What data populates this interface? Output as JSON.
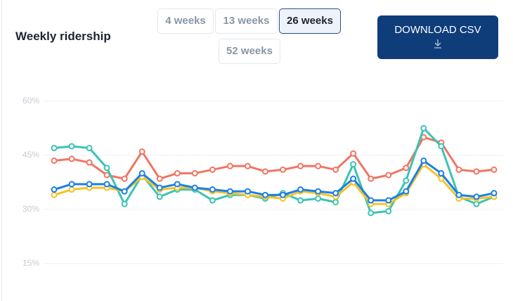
{
  "title": "Weekly ridership",
  "buttons": [
    "4 weeks",
    "13 weeks",
    "26 weeks",
    "52 weeks"
  ],
  "selected": 2,
  "download": "DOWNLOAD CSV",
  "chart_data": {
    "type": "line",
    "categories": [
      null,
      null,
      null,
      null,
      null,
      null,
      null,
      null,
      null,
      null,
      null,
      null,
      null,
      null,
      null,
      null,
      null,
      null,
      null,
      null,
      null,
      null,
      null,
      null,
      null,
      null
    ],
    "ylim": [
      5,
      62.5
    ],
    "yticks": [
      {
        "value": 15,
        "label": "15%"
      },
      {
        "value": 30,
        "label": "30%"
      },
      {
        "value": 45,
        "label": "45%"
      },
      {
        "value": 60,
        "label": "60%"
      }
    ],
    "grid": true,
    "series": [
      {
        "color": "#f07563",
        "values": [
          43.5,
          44,
          43,
          39.5,
          38.5,
          46,
          38.5,
          40,
          40,
          41,
          42,
          42,
          40.5,
          41,
          42,
          42,
          41,
          45.5,
          38.5,
          39.5,
          41.5,
          50,
          48.5,
          41,
          40.5,
          41
        ]
      },
      {
        "color": "#3cc3b5",
        "values": [
          47,
          47.5,
          47,
          41.5,
          31.5,
          39.5,
          33.5,
          35.5,
          35.5,
          32.5,
          34,
          34,
          33,
          34.5,
          32.5,
          33,
          32,
          42.5,
          29,
          29.5,
          38,
          52.5,
          47.5,
          33.5,
          31.5,
          33.5
        ]
      },
      {
        "color": "#f5c226",
        "values": [
          34,
          35.5,
          36,
          36,
          35,
          39,
          35.5,
          36,
          36,
          35,
          34.5,
          34,
          33.5,
          33,
          35,
          34.5,
          33.5,
          37.5,
          31.5,
          31.5,
          34.5,
          42.5,
          38.5,
          33,
          33,
          33.5
        ]
      },
      {
        "color": "#1a7fe8",
        "values": [
          35.5,
          37,
          37,
          37,
          35,
          40,
          36,
          37,
          36,
          35.5,
          35,
          35,
          34,
          34,
          35.5,
          35,
          34.5,
          38.5,
          32.5,
          32.5,
          35,
          43.5,
          40,
          34,
          33.5,
          34.5
        ]
      }
    ]
  }
}
